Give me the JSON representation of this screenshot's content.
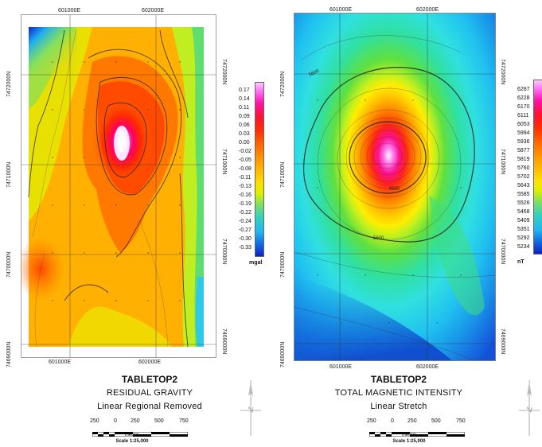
{
  "gravity": {
    "title": "TABLETOP2",
    "subtitle": "RESIDUAL GRAVITY",
    "subtitle2": "Linear Regional Removed",
    "unit": "mgal",
    "legend": [
      "0.17",
      "0.14",
      "0.11",
      "0.09",
      "0.06",
      "0.03",
      "0.00",
      "-0.02",
      "-0.05",
      "-0.08",
      "-0.11",
      "-0.13",
      "-0.16",
      "-0.19",
      "-0.22",
      "-0.24",
      "-0.27",
      "-0.30",
      "-0.33"
    ],
    "easting_top": [
      "601000E",
      "602000E"
    ],
    "easting_bottom": [
      "601000E",
      "602000E"
    ],
    "northing_left": [
      "7472000N",
      "7471000N",
      "7470000N",
      "7469000N"
    ],
    "northing_right": [
      "7472000N",
      "7471000N",
      "7470000N",
      "7469000N"
    ],
    "scale": {
      "ticks": [
        "250",
        "0",
        "250",
        "500",
        "750"
      ],
      "units": "metres",
      "ratio": "Scale 1:25,000"
    }
  },
  "magnetic": {
    "title": "TABLETOP2",
    "subtitle": "TOTAL MAGNETIC INTENSITY",
    "subtitle2": "Linear Stretch",
    "unit": "nT",
    "legend": [
      "6287",
      "6228",
      "6170",
      "6111",
      "6053",
      "5994",
      "5936",
      "5877",
      "5819",
      "5760",
      "5702",
      "5643",
      "5585",
      "5526",
      "5468",
      "5409",
      "5351",
      "5292",
      "5234"
    ],
    "contour_labels": [
      "5600",
      "6600",
      "5600"
    ],
    "easting_top": [
      "601000E",
      "602000E"
    ],
    "easting_bottom": [
      "601000E",
      "602000E"
    ],
    "northing_left": [
      "7472000N",
      "7471000N",
      "7470000N",
      "7469000N"
    ],
    "northing_right": [
      "7472000N",
      "7471000N",
      "7470000N",
      "7469000N"
    ],
    "scale": {
      "ticks": [
        "250",
        "0",
        "250",
        "500",
        "750"
      ],
      "units": "metres",
      "ratio": "Scale 1:25,000"
    }
  }
}
